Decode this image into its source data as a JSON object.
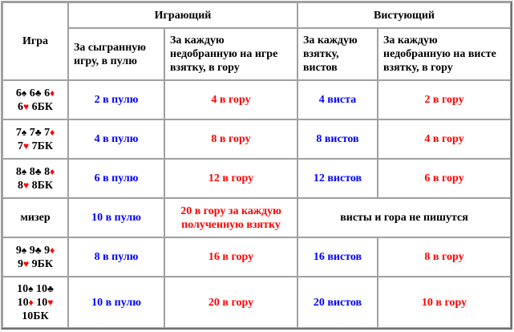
{
  "header": {
    "game": "Игра",
    "player": "Играющий",
    "whister": "Вистующий",
    "player_played": "За сыгранную игру, в пулю",
    "player_undertrick": "За каждую недобранную на игре взятку, в гору",
    "whister_trick": "За каждую взятку, вистов",
    "whister_undertrick": "За каждую недобранную на висте взятку, в гору"
  },
  "colors": {
    "pool": "#0000ff",
    "mountain": "#ff0000",
    "red_suit": "#ff0000",
    "black_suit": "#000000"
  },
  "rows": [
    {
      "game": [
        [
          [
            "6",
            ""
          ],
          [
            "♠",
            "black"
          ],
          [
            " 6",
            ""
          ],
          [
            "♣",
            "black"
          ],
          [
            " 6",
            ""
          ],
          [
            "♦",
            "red"
          ]
        ],
        [
          [
            "6",
            ""
          ],
          [
            "♥",
            "red"
          ],
          [
            " 6БК",
            ""
          ]
        ]
      ],
      "pool": "2 в пулю",
      "mountain": "4 в гору",
      "whists": "4 виста",
      "whist_mountain": "2 в гору"
    },
    {
      "game": [
        [
          [
            "7",
            ""
          ],
          [
            "♠",
            "black"
          ],
          [
            " 7",
            ""
          ],
          [
            "♣",
            "black"
          ],
          [
            " 7",
            ""
          ],
          [
            "♦",
            "red"
          ]
        ],
        [
          [
            "7",
            ""
          ],
          [
            "♥",
            "red"
          ],
          [
            " 7БК",
            ""
          ]
        ]
      ],
      "pool": "4 в пулю",
      "mountain": "8 в гору",
      "whists": "8 вистов",
      "whist_mountain": "4 в гору"
    },
    {
      "game": [
        [
          [
            "8",
            ""
          ],
          [
            "♠",
            "black"
          ],
          [
            " 8",
            ""
          ],
          [
            "♣",
            "black"
          ],
          [
            " 8",
            ""
          ],
          [
            "♦",
            "red"
          ]
        ],
        [
          [
            "8",
            ""
          ],
          [
            "♥",
            "red"
          ],
          [
            " 8БК",
            ""
          ]
        ]
      ],
      "pool": "6 в пулю",
      "mountain": "12 в гору",
      "whists": "12 вистов",
      "whist_mountain": "6 в гору"
    },
    {
      "game": [
        [
          [
            "мизер",
            ""
          ]
        ]
      ],
      "pool": "10 в пулю",
      "mountain": "20 в гору за каждую полученную взятку",
      "whist_note": "висты и гора не пишутся"
    },
    {
      "game": [
        [
          [
            "9",
            ""
          ],
          [
            "♠",
            "black"
          ],
          [
            " 9",
            ""
          ],
          [
            "♣",
            "black"
          ],
          [
            " 9",
            ""
          ],
          [
            "♦",
            "red"
          ]
        ],
        [
          [
            "9",
            ""
          ],
          [
            "♥",
            "red"
          ],
          [
            " 9БК",
            ""
          ]
        ]
      ],
      "pool": "8 в пулю",
      "mountain": "16 в гору",
      "whists": "16 вистов",
      "whist_mountain": "8 в гору"
    },
    {
      "game": [
        [
          [
            "10",
            ""
          ],
          [
            "♠",
            "black"
          ],
          [
            " 10",
            ""
          ],
          [
            "♣",
            "black"
          ]
        ],
        [
          [
            "10",
            ""
          ],
          [
            "♦",
            "red"
          ],
          [
            " 10",
            ""
          ],
          [
            "♥",
            "red"
          ]
        ],
        [
          [
            "10БК",
            ""
          ]
        ]
      ],
      "pool": "10 в пулю",
      "mountain": "20 в гору",
      "whists": "20 вистов",
      "whist_mountain": "10 в гору"
    }
  ]
}
